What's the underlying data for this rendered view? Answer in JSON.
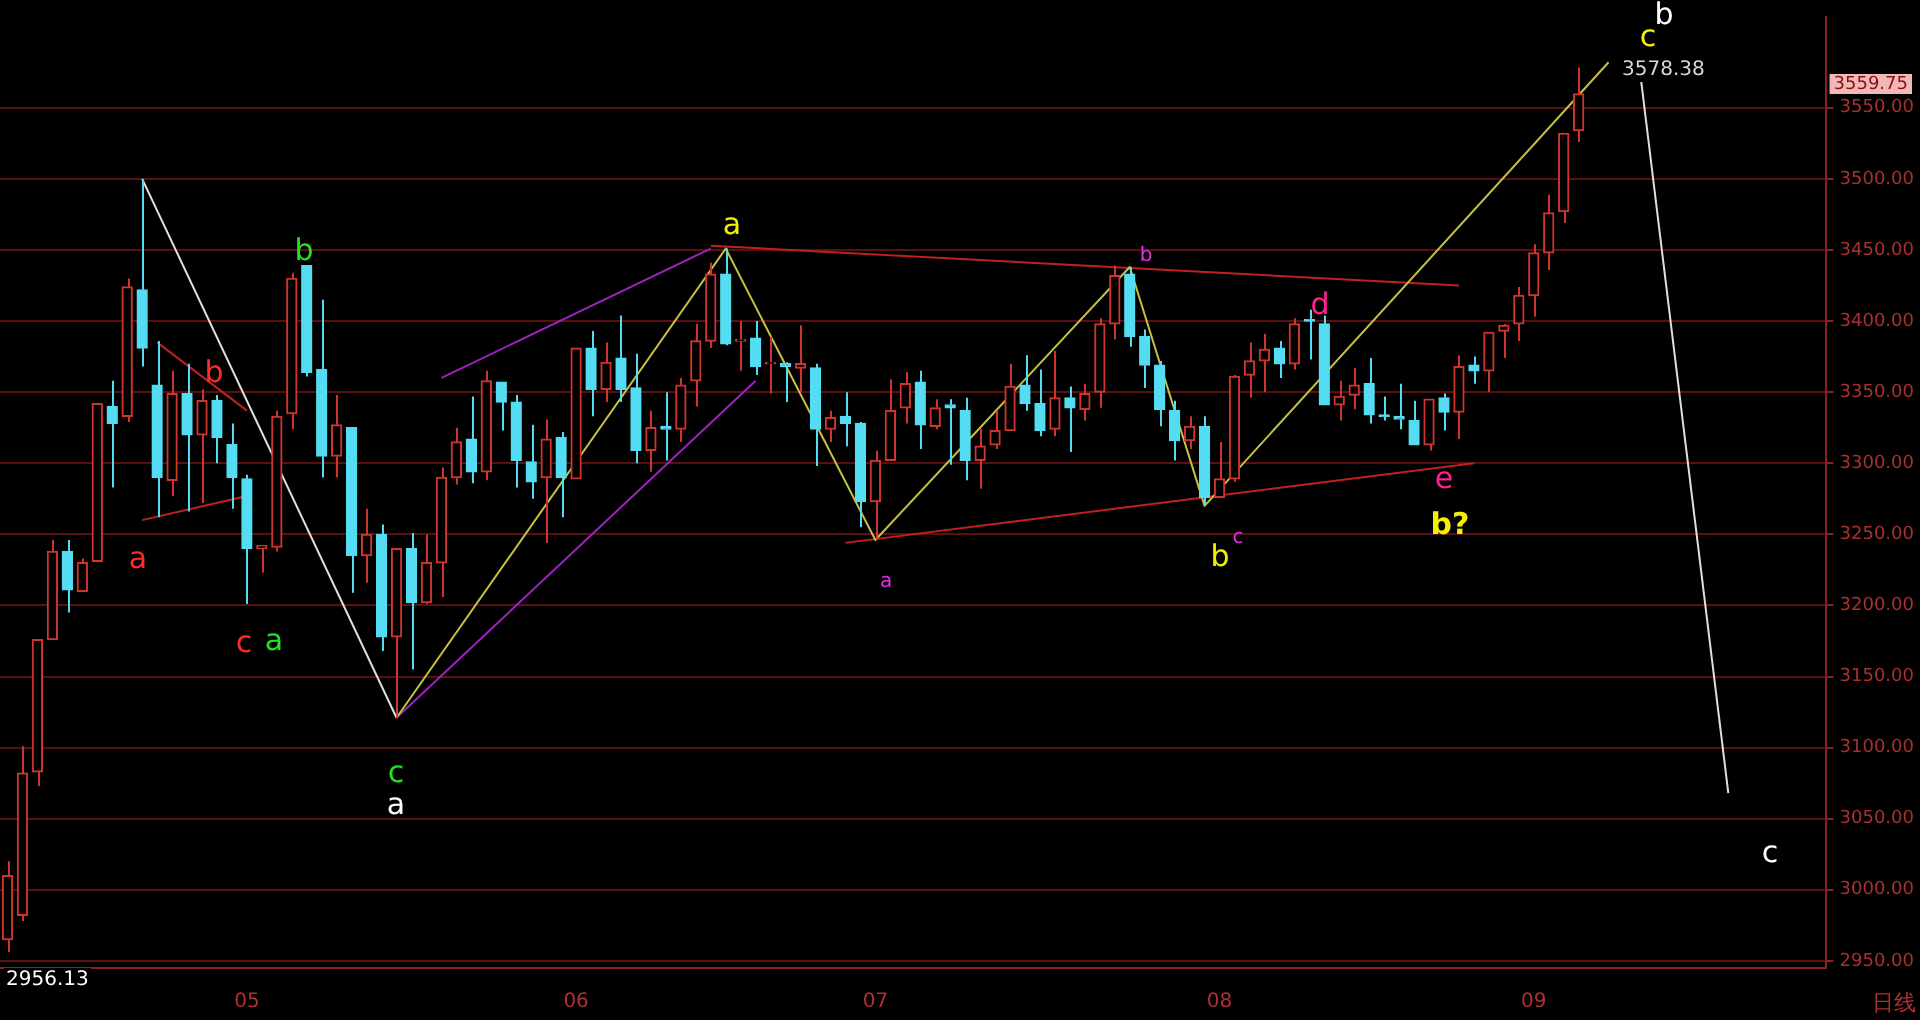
{
  "chart_data": {
    "type": "candlestick",
    "categories": [
      null,
      null,
      null,
      null,
      null,
      null,
      null,
      null,
      null,
      null,
      null,
      null,
      null,
      null,
      null,
      null,
      "05",
      null,
      null,
      null,
      null,
      null,
      null,
      null,
      null,
      null,
      null,
      null,
      null,
      null,
      null,
      null,
      null,
      null,
      null,
      null,
      null,
      null,
      "06",
      null,
      null,
      null,
      null,
      null,
      null,
      null,
      null,
      null,
      null,
      null,
      null,
      null,
      null,
      null,
      null,
      null,
      null,
      null,
      "07",
      null,
      null,
      null,
      null,
      null,
      null,
      null,
      null,
      null,
      null,
      null,
      null,
      null,
      null,
      null,
      null,
      null,
      null,
      null,
      null,
      null,
      null,
      "08",
      null,
      null,
      null,
      null,
      null,
      null,
      null,
      null,
      null,
      null,
      null,
      null,
      null,
      null,
      null,
      null,
      null,
      null,
      null,
      null,
      "09",
      null,
      null,
      null,
      null,
      null,
      null,
      null,
      null,
      null,
      null,
      null,
      null,
      null,
      null,
      null,
      null,
      null,
      null,
      null
    ],
    "ohlc": [
      [
        2965,
        3020,
        2956.13,
        3010
      ],
      [
        2982,
        3101,
        2978,
        3082
      ],
      [
        3083,
        3176,
        3073,
        3176
      ],
      [
        3176,
        3246,
        3176,
        3238
      ],
      [
        3238,
        3246,
        3195,
        3211
      ],
      [
        3210,
        3233,
        3210,
        3230
      ],
      [
        3231,
        3342,
        3231,
        3342
      ],
      [
        3340,
        3358,
        3283,
        3328
      ],
      [
        3333,
        3430,
        3329,
        3424
      ],
      [
        3422,
        3500,
        3368,
        3381
      ],
      [
        3355,
        3386,
        3262,
        3290
      ],
      [
        3288,
        3365,
        3277,
        3349
      ],
      [
        3349,
        3370,
        3266,
        3320
      ],
      [
        3320,
        3352,
        3272,
        3344
      ],
      [
        3344,
        3348,
        3300,
        3318
      ],
      [
        3313,
        3328,
        3268,
        3290
      ],
      [
        3289,
        3292,
        3201,
        3240
      ],
      [
        3240,
        3242,
        3223,
        3242
      ],
      [
        3241,
        3337,
        3238,
        3333
      ],
      [
        3335,
        3434,
        3324,
        3430
      ],
      [
        3439,
        3439,
        3361,
        3364
      ],
      [
        3366,
        3415,
        3290,
        3305
      ],
      [
        3305,
        3348,
        3290,
        3327
      ],
      [
        3325,
        3325,
        3209,
        3235
      ],
      [
        3235,
        3268,
        3216,
        3250
      ],
      [
        3250,
        3257,
        3168,
        3178
      ],
      [
        3178,
        3240,
        3121,
        3240
      ],
      [
        3240,
        3251,
        3155,
        3202
      ],
      [
        3202,
        3250,
        3201,
        3230
      ],
      [
        3230,
        3297,
        3206,
        3290
      ],
      [
        3290,
        3325,
        3285,
        3315
      ],
      [
        3317,
        3347,
        3286,
        3294
      ],
      [
        3294,
        3365,
        3288,
        3358
      ],
      [
        3357,
        3357,
        3323,
        3343
      ],
      [
        3343,
        3348,
        3283,
        3302
      ],
      [
        3301,
        3327,
        3275,
        3287
      ],
      [
        3290,
        3331,
        3244,
        3317
      ],
      [
        3318,
        3322,
        3262,
        3290
      ],
      [
        3289,
        3381,
        3289,
        3381
      ],
      [
        3381,
        3393,
        3333,
        3352
      ],
      [
        3352,
        3385,
        3343,
        3371
      ],
      [
        3374,
        3404,
        3343,
        3352
      ],
      [
        3353,
        3377,
        3300,
        3309
      ],
      [
        3309,
        3337,
        3294,
        3325
      ],
      [
        3326,
        3350,
        3302,
        3324
      ],
      [
        3324,
        3360,
        3315,
        3355
      ],
      [
        3358,
        3398,
        3340,
        3386
      ],
      [
        3386,
        3441,
        3381,
        3433
      ],
      [
        3433,
        3451,
        3383,
        3384
      ],
      [
        3386,
        3400,
        3365,
        3387
      ],
      [
        3388,
        3400,
        3362,
        3368
      ],
      [
        3370,
        3389,
        3349,
        3371
      ],
      [
        3370,
        3371,
        3343,
        3368
      ],
      [
        3367,
        3397,
        3350,
        3370
      ],
      [
        3367,
        3370,
        3298,
        3324
      ],
      [
        3324,
        3337,
        3315,
        3332
      ],
      [
        3333,
        3350,
        3312,
        3328
      ],
      [
        3328,
        3329,
        3255,
        3273
      ],
      [
        3273,
        3309,
        3246,
        3302
      ],
      [
        3302,
        3359,
        3302,
        3337
      ],
      [
        3339,
        3364,
        3328,
        3356
      ],
      [
        3357,
        3365,
        3310,
        3327
      ],
      [
        3326,
        3345,
        3324,
        3339
      ],
      [
        3341,
        3345,
        3299,
        3339
      ],
      [
        3337,
        3346,
        3288,
        3302
      ],
      [
        3302,
        3324,
        3282,
        3312
      ],
      [
        3313,
        3337,
        3310,
        3323
      ],
      [
        3323,
        3370,
        3323,
        3354
      ],
      [
        3355,
        3376,
        3337,
        3342
      ],
      [
        3342,
        3366,
        3319,
        3323
      ],
      [
        3324,
        3379,
        3319,
        3346
      ],
      [
        3346,
        3354,
        3308,
        3339
      ],
      [
        3338,
        3356,
        3330,
        3349
      ],
      [
        3350,
        3402,
        3339,
        3398
      ],
      [
        3398,
        3439,
        3387,
        3432
      ],
      [
        3433,
        3438,
        3382,
        3389
      ],
      [
        3389,
        3394,
        3353,
        3369
      ],
      [
        3369,
        3372,
        3326,
        3338
      ],
      [
        3337,
        3344,
        3302,
        3316
      ],
      [
        3316,
        3333,
        3310,
        3326
      ],
      [
        3326,
        3333,
        3270,
        3276
      ],
      [
        3276,
        3315,
        3276,
        3289
      ],
      [
        3289,
        3362,
        3287,
        3361
      ],
      [
        3362,
        3385,
        3346,
        3372
      ],
      [
        3372,
        3391,
        3350,
        3380
      ],
      [
        3381,
        3386,
        3360,
        3370
      ],
      [
        3370,
        3402,
        3366,
        3398
      ],
      [
        3401,
        3408,
        3373,
        3400
      ],
      [
        3398,
        3404,
        3341,
        3341
      ],
      [
        3341,
        3358,
        3330,
        3347
      ],
      [
        3348,
        3367,
        3338,
        3355
      ],
      [
        3356,
        3374,
        3328,
        3334
      ],
      [
        3334,
        3347,
        3330,
        3333
      ],
      [
        3333,
        3356,
        3324,
        3331
      ],
      [
        3330,
        3344,
        3313,
        3313
      ],
      [
        3313,
        3345,
        3309,
        3345
      ],
      [
        3346,
        3349,
        3323,
        3336
      ],
      [
        3336,
        3376,
        3317,
        3368
      ],
      [
        3369,
        3375,
        3356,
        3365
      ],
      [
        3365,
        3392,
        3350,
        3392
      ],
      [
        3393,
        3398,
        3374,
        3397
      ],
      [
        3398,
        3424,
        3386,
        3418
      ],
      [
        3418,
        3454,
        3403,
        3448
      ],
      [
        3448,
        3489,
        3436,
        3476
      ],
      [
        3477,
        3532,
        3469,
        3532
      ],
      [
        3534,
        3578.38,
        3526,
        3559.75
      ],
      null,
      null,
      null,
      null,
      null,
      null,
      null,
      null,
      null,
      null,
      null,
      null,
      null,
      null,
      null,
      null
    ],
    "series": [
      {
        "type": "line",
        "color": "#e0e0e0",
        "values": [
          null,
          null,
          null,
          null,
          null,
          null,
          null,
          null,
          null,
          3500,
          null,
          null,
          null,
          null,
          null,
          null,
          null,
          null,
          null,
          null,
          null,
          null,
          null,
          null,
          null,
          null,
          3121,
          null,
          null,
          null,
          null,
          null,
          null,
          null,
          null,
          null,
          null,
          null,
          null,
          null,
          null,
          null,
          null,
          null,
          null,
          null,
          null,
          null,
          null,
          null,
          null,
          null,
          null,
          null,
          null,
          null,
          null,
          null,
          null,
          null,
          null,
          null,
          null,
          null,
          null,
          null,
          null,
          null,
          null,
          null,
          null,
          null,
          null,
          null,
          null,
          null,
          null,
          null,
          null,
          null,
          null,
          null,
          null,
          null,
          null,
          null,
          null,
          null,
          null,
          null,
          null,
          null,
          null,
          null,
          null,
          null,
          null,
          null,
          null,
          null,
          null,
          null,
          null,
          null,
          null,
          null,
          null,
          null,
          null,
          null,
          null,
          null,
          null,
          null,
          null,
          null,
          null,
          null,
          null,
          null,
          null,
          null
        ]
      },
      {
        "type": "line",
        "color": "#c8c040",
        "values": [
          null,
          null,
          null,
          null,
          null,
          null,
          null,
          null,
          null,
          null,
          null,
          null,
          null,
          null,
          null,
          null,
          null,
          null,
          null,
          null,
          null,
          null,
          null,
          null,
          null,
          null,
          3121,
          null,
          null,
          null,
          null,
          null,
          null,
          null,
          null,
          null,
          null,
          null,
          null,
          null,
          null,
          null,
          null,
          null,
          null,
          null,
          null,
          null,
          3451,
          null,
          null,
          null,
          null,
          null,
          null,
          null,
          null,
          null,
          3246,
          null,
          null,
          null,
          null,
          null,
          null,
          null,
          null,
          null,
          null,
          null,
          null,
          null,
          null,
          null,
          null,
          3438,
          null,
          null,
          null,
          null,
          3270,
          null,
          null,
          null,
          null,
          null,
          null,
          null,
          null,
          null,
          null,
          null,
          null,
          null,
          null,
          null,
          null,
          null,
          null,
          null,
          null,
          null,
          null,
          null,
          null,
          null,
          null,
          3582,
          null,
          null,
          null,
          null,
          null,
          null,
          null,
          null,
          null,
          null,
          null,
          null,
          null,
          null
        ]
      },
      {
        "type": "line",
        "color": "#a020c0",
        "values": [
          null,
          null,
          null,
          null,
          null,
          null,
          null,
          null,
          null,
          null,
          null,
          null,
          null,
          null,
          null,
          null,
          null,
          null,
          null,
          null,
          null,
          null,
          null,
          null,
          null,
          null,
          null,
          null,
          null,
          3360,
          null,
          null,
          null,
          null,
          null,
          null,
          null,
          null,
          null,
          null,
          null,
          null,
          null,
          null,
          null,
          null,
          null,
          3451,
          null,
          null,
          null,
          null,
          null,
          null,
          null,
          null,
          null,
          null,
          null,
          null,
          null,
          null,
          null,
          null,
          null,
          null,
          null,
          null,
          null,
          null,
          null,
          null,
          null,
          null,
          null,
          null,
          null,
          null,
          null,
          null,
          null,
          null,
          null,
          null,
          null,
          null,
          null,
          null,
          null,
          null,
          null,
          null,
          null,
          null,
          null,
          null,
          null,
          null,
          null,
          null,
          null,
          null,
          null,
          null,
          null,
          null,
          null,
          null,
          null,
          null,
          null,
          null,
          null,
          null,
          null,
          null,
          null,
          null,
          null,
          null,
          null,
          null
        ]
      },
      {
        "type": "line",
        "color": "#a020c0",
        "values": [
          null,
          null,
          null,
          null,
          null,
          null,
          null,
          null,
          null,
          null,
          null,
          null,
          null,
          null,
          null,
          null,
          null,
          null,
          null,
          null,
          null,
          null,
          null,
          null,
          null,
          null,
          3121,
          null,
          null,
          null,
          null,
          null,
          null,
          null,
          null,
          null,
          null,
          null,
          null,
          null,
          null,
          null,
          null,
          null,
          null,
          null,
          null,
          null,
          null,
          null,
          3358,
          null,
          null,
          null,
          null,
          null,
          null,
          null,
          null,
          null,
          null,
          null,
          null,
          null,
          null,
          null,
          null,
          null,
          null,
          null,
          null,
          null,
          null,
          null,
          null,
          null,
          null,
          null,
          null,
          null,
          null,
          null,
          null,
          null,
          null,
          null,
          null,
          null,
          null,
          null,
          null,
          null,
          null,
          null,
          null,
          null,
          null,
          null,
          null,
          null,
          null,
          null,
          null,
          null,
          null,
          null,
          null,
          null,
          null,
          null,
          null,
          null,
          null,
          null,
          null,
          null,
          null,
          null,
          null,
          null,
          null,
          null
        ]
      },
      {
        "type": "line",
        "color": "#c02020",
        "values": [
          null,
          null,
          null,
          null,
          null,
          null,
          null,
          null,
          null,
          null,
          3385,
          null,
          null,
          null,
          null,
          null,
          3337,
          null,
          null,
          null,
          null,
          null,
          null,
          null,
          null,
          null,
          null,
          null,
          null,
          null,
          null,
          null,
          null,
          null,
          null,
          null,
          null,
          null,
          null,
          null,
          null,
          null,
          null,
          null,
          null,
          null,
          null,
          null,
          null,
          null,
          null,
          null,
          null,
          null,
          null,
          null,
          null,
          null,
          null,
          null,
          null,
          null,
          null,
          null,
          null,
          null,
          null,
          null,
          null,
          null,
          null,
          null,
          null,
          null,
          null,
          null,
          null,
          null,
          null,
          null,
          null,
          null,
          null,
          null,
          null,
          null,
          null,
          null,
          null,
          null,
          null,
          null,
          null,
          null,
          null,
          null,
          null,
          null,
          null,
          null,
          null,
          null,
          null,
          null,
          null,
          null,
          null,
          null,
          null,
          null,
          null,
          null,
          null,
          null,
          null,
          null,
          null,
          null,
          null,
          null,
          null,
          null
        ]
      },
      {
        "type": "line",
        "color": "#c02020",
        "values": [
          null,
          null,
          null,
          null,
          null,
          null,
          null,
          null,
          null,
          3260,
          null,
          null,
          null,
          null,
          null,
          null,
          3277,
          null,
          null,
          null,
          null,
          null,
          null,
          null,
          null,
          null,
          null,
          null,
          null,
          null,
          null,
          null,
          null,
          null,
          null,
          null,
          null,
          null,
          null,
          null,
          null,
          null,
          null,
          null,
          null,
          null,
          null,
          null,
          null,
          null,
          null,
          null,
          null,
          null,
          null,
          null,
          null,
          null,
          null,
          null,
          null,
          null,
          null,
          null,
          null,
          null,
          null,
          null,
          null,
          null,
          null,
          null,
          null,
          null,
          null,
          null,
          null,
          null,
          null,
          null,
          null,
          null,
          null,
          null,
          null,
          null,
          null,
          null,
          null,
          null,
          null,
          null,
          null,
          null,
          null,
          null,
          null,
          null,
          null,
          null,
          null,
          null,
          null,
          null,
          null,
          null,
          null,
          null,
          null,
          null,
          null,
          null,
          null,
          null,
          null,
          null,
          null,
          null,
          null,
          null,
          null,
          null
        ]
      },
      {
        "type": "line",
        "color": "#c02020",
        "values": [
          null,
          null,
          null,
          null,
          null,
          null,
          null,
          null,
          null,
          null,
          null,
          null,
          null,
          null,
          null,
          null,
          null,
          null,
          null,
          null,
          null,
          null,
          null,
          null,
          null,
          null,
          null,
          null,
          null,
          null,
          null,
          null,
          null,
          null,
          null,
          null,
          null,
          null,
          null,
          null,
          null,
          null,
          null,
          null,
          null,
          null,
          null,
          3453,
          null,
          null,
          null,
          null,
          null,
          null,
          null,
          null,
          null,
          null,
          null,
          null,
          null,
          null,
          null,
          null,
          null,
          null,
          null,
          null,
          null,
          null,
          null,
          null,
          null,
          null,
          null,
          null,
          null,
          null,
          null,
          null,
          null,
          null,
          null,
          null,
          null,
          null,
          null,
          null,
          null,
          null,
          null,
          null,
          null,
          null,
          null,
          null,
          null,
          3425,
          null,
          null,
          null,
          null,
          null,
          null,
          null,
          null,
          null,
          null,
          null,
          null,
          null,
          null,
          null,
          null,
          null,
          null,
          null,
          null,
          null,
          null,
          null,
          null
        ]
      },
      {
        "type": "line",
        "color": "#c02020",
        "values": [
          null,
          null,
          null,
          null,
          null,
          null,
          null,
          null,
          null,
          null,
          null,
          null,
          null,
          null,
          null,
          null,
          null,
          null,
          null,
          null,
          null,
          null,
          null,
          null,
          null,
          null,
          null,
          null,
          null,
          null,
          null,
          null,
          null,
          null,
          null,
          null,
          null,
          null,
          null,
          null,
          null,
          null,
          null,
          null,
          null,
          null,
          null,
          null,
          null,
          null,
          null,
          null,
          null,
          null,
          null,
          null,
          3244,
          null,
          null,
          null,
          null,
          null,
          null,
          null,
          null,
          null,
          null,
          null,
          null,
          null,
          null,
          null,
          null,
          null,
          null,
          null,
          null,
          null,
          null,
          null,
          null,
          null,
          null,
          null,
          null,
          null,
          null,
          null,
          null,
          null,
          null,
          null,
          null,
          null,
          null,
          null,
          null,
          null,
          3300,
          null,
          null,
          null,
          null,
          null,
          null,
          null,
          null,
          null,
          null,
          null,
          null,
          null,
          null,
          null,
          null,
          null,
          null,
          null,
          null,
          null,
          null,
          null
        ]
      },
      {
        "type": "line",
        "color": "#e0e0e0",
        "values": [
          null,
          null,
          null,
          null,
          null,
          null,
          null,
          null,
          null,
          null,
          null,
          null,
          null,
          null,
          null,
          null,
          null,
          null,
          null,
          null,
          null,
          null,
          null,
          null,
          null,
          null,
          null,
          null,
          null,
          null,
          null,
          null,
          null,
          null,
          null,
          null,
          null,
          null,
          null,
          null,
          null,
          null,
          null,
          null,
          null,
          null,
          null,
          null,
          null,
          null,
          null,
          null,
          null,
          null,
          null,
          null,
          null,
          null,
          null,
          null,
          null,
          null,
          null,
          null,
          null,
          null,
          null,
          null,
          null,
          null,
          null,
          null,
          null,
          null,
          null,
          null,
          null,
          null,
          null,
          null,
          null,
          null,
          null,
          null,
          null,
          null,
          null,
          null,
          null,
          null,
          null,
          null,
          null,
          null,
          null,
          null,
          null,
          null,
          null,
          null,
          null,
          null,
          null,
          null,
          null,
          null,
          null,
          null,
          null,
          3584,
          null,
          null,
          null,
          null,
          null,
          3068,
          null,
          null,
          null,
          null,
          null,
          null
        ]
      }
    ],
    "annotations": [
      "a",
      "b",
      "c",
      "a",
      "b",
      "c",
      "a",
      "a",
      "a",
      "b",
      "b",
      "c",
      "d",
      "e",
      "b?",
      "c",
      "b",
      "c",
      "2956.13",
      "3578.38",
      "3559.75",
      "日线"
    ],
    "ylim": [
      2945,
      3614
    ],
    "yticks": [
      {
        "value": 2950,
        "label": "2950.00"
      },
      {
        "value": 3000,
        "label": "3000.00"
      },
      {
        "value": 3050,
        "label": "3050.00"
      },
      {
        "value": 3100,
        "label": "3100.00"
      },
      {
        "value": 3150,
        "label": "3150.00"
      },
      {
        "value": 3200,
        "label": "3200.00"
      },
      {
        "value": 3250,
        "label": "3250.00"
      },
      {
        "value": 3300,
        "label": "3300.00"
      },
      {
        "value": 3350,
        "label": "3350.00"
      },
      {
        "value": 3400,
        "label": "3400.00"
      },
      {
        "value": 3450,
        "label": "3450.00"
      },
      {
        "value": 3500,
        "label": "3500.00"
      },
      {
        "value": 3550,
        "label": "3550.00"
      }
    ],
    "grid": "y"
  }
}
